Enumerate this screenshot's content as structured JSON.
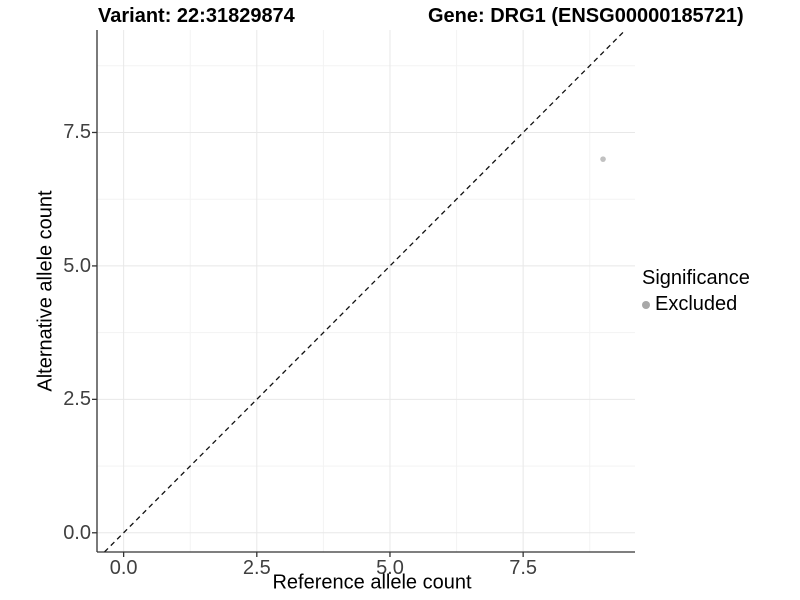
{
  "chart_data": {
    "type": "scatter",
    "title_left": "Variant: 22:31829874",
    "title_right": "Gene: DRG1 (ENSG00000185721)",
    "xlabel": "Reference allele count",
    "ylabel": "Alternative allele count",
    "xlim": [
      -0.5,
      9.6
    ],
    "ylim": [
      -0.36,
      9.42
    ],
    "x_ticks": [
      0,
      2.5,
      5,
      7.5
    ],
    "x_tick_labels": [
      "0.0",
      "2.5",
      "5.0",
      "7.5"
    ],
    "y_ticks": [
      0,
      2.5,
      5,
      7.5
    ],
    "y_tick_labels": [
      "0.0",
      "2.5",
      "5.0",
      "7.5"
    ],
    "x_minor_ticks": [
      1.25,
      3.75,
      6.25,
      8.75
    ],
    "y_minor_ticks": [
      1.25,
      3.75,
      6.25,
      8.75
    ],
    "grid": true,
    "legend_position": "right",
    "reference_line": {
      "type": "identity",
      "slope": 1,
      "intercept": 0,
      "style": "dashed",
      "color": "#111111"
    },
    "series": [
      {
        "name": "Excluded",
        "color": "#c1c1c1",
        "points": [
          {
            "x": 9,
            "y": 7
          }
        ]
      }
    ],
    "legend": {
      "title": "Significance",
      "items": [
        {
          "label": "Excluded",
          "color": "#a8a8a8",
          "marker": "circle"
        }
      ]
    }
  }
}
